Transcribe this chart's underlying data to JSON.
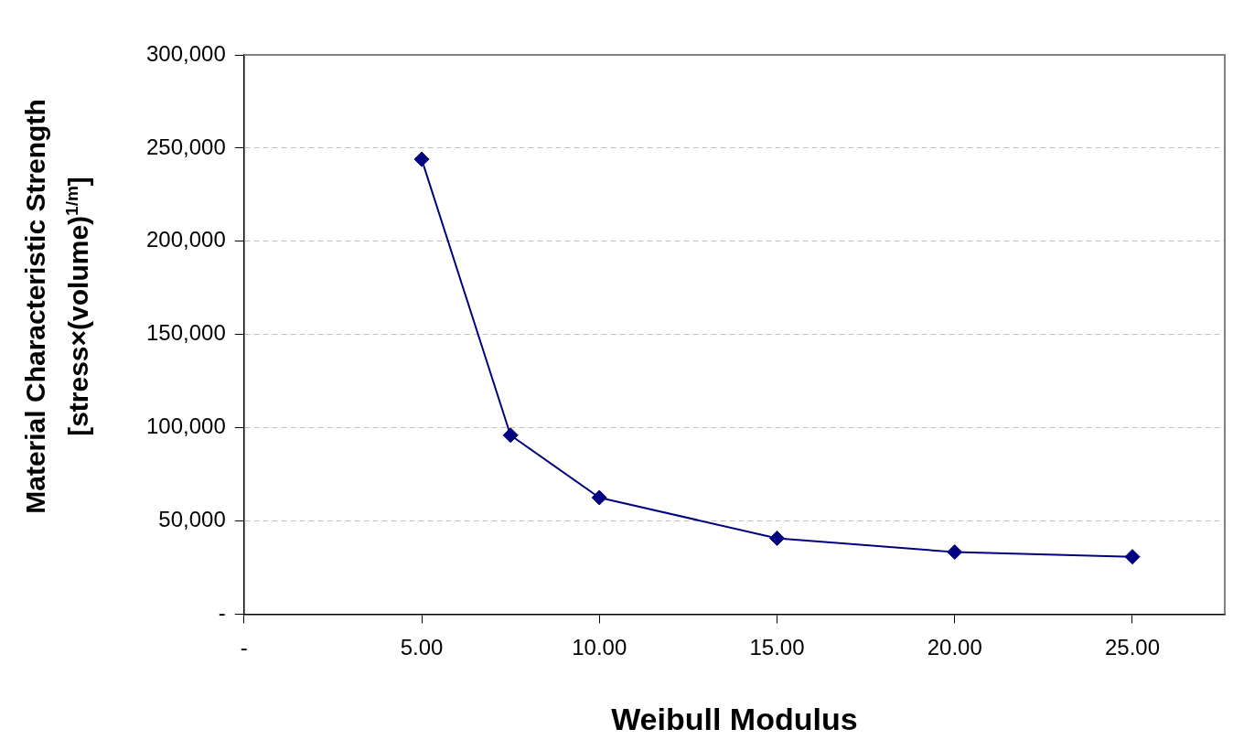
{
  "chart_data": {
    "type": "line",
    "xlabel": "Weibull Modulus",
    "ylabel": "Material Characteristic Strength\n[stress×(volume)$^{1/m}$]",
    "x": [
      5,
      7.5,
      10,
      15,
      20,
      25
    ],
    "series": [
      {
        "color": "#000080",
        "values": [
          244000,
          96000,
          62500,
          40700,
          33300,
          30800
        ]
      }
    ],
    "xlim": [
      0,
      27.6
    ],
    "xticks": [
      {
        "value": 0,
        "label": "-"
      },
      {
        "value": 5,
        "label": "5.00"
      },
      {
        "value": 10,
        "label": "10.00"
      },
      {
        "value": 15,
        "label": "15.00"
      },
      {
        "value": 20,
        "label": "20.00"
      },
      {
        "value": 25,
        "label": "25.00"
      }
    ],
    "ylim": [
      0,
      300000
    ],
    "yticks": [
      {
        "value": 0,
        "label": "-"
      },
      {
        "value": 50000,
        "label": "50,000"
      },
      {
        "value": 100000,
        "label": "100,000"
      },
      {
        "value": 150000,
        "label": "150,000"
      },
      {
        "value": 200000,
        "label": "200,000"
      },
      {
        "value": 250000,
        "label": "250,000"
      },
      {
        "value": 300000,
        "label": "300,000"
      }
    ],
    "grid": "y",
    "legend": false,
    "marker": "diamond",
    "line_style": "solid"
  }
}
